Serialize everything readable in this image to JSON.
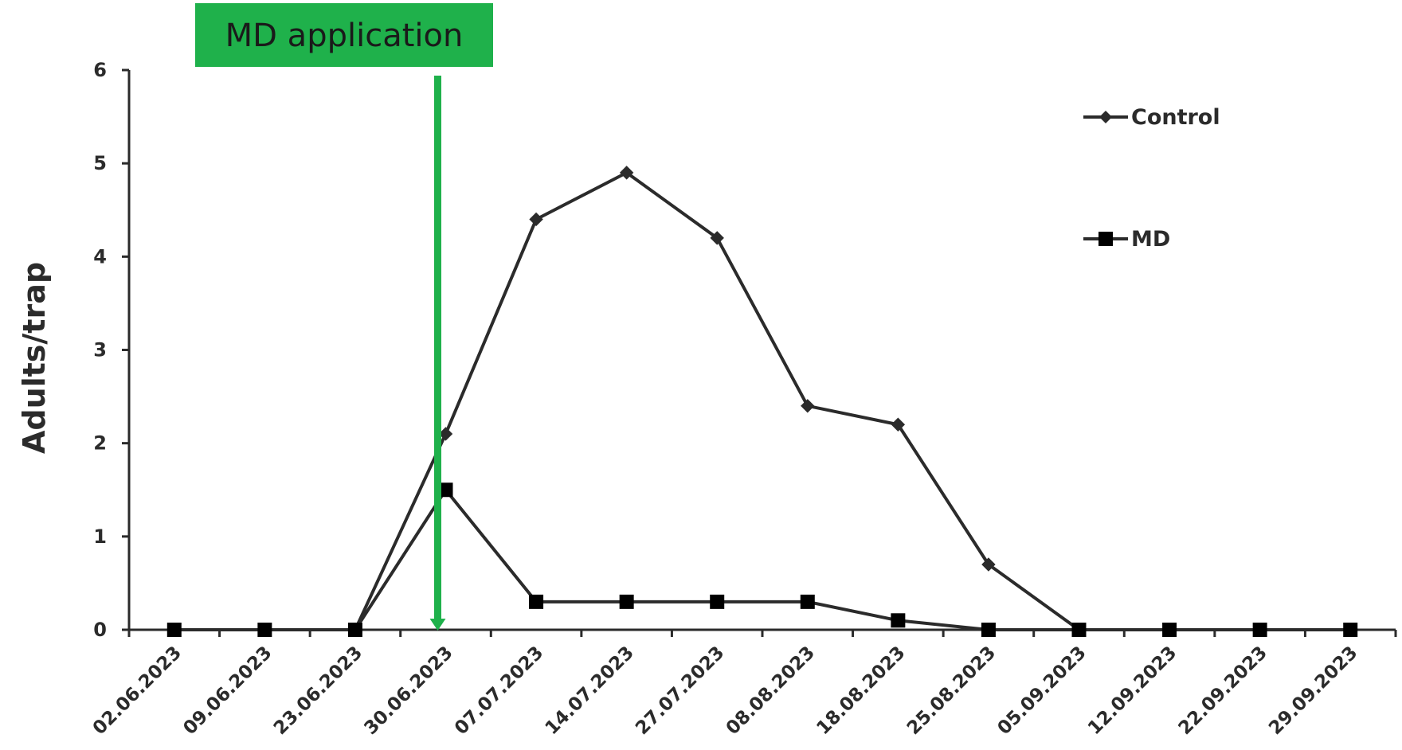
{
  "chart_data": {
    "type": "line",
    "xlabel": "",
    "ylabel": "Adults/trap",
    "ylim": [
      0,
      6
    ],
    "yticks": [
      0,
      1,
      2,
      3,
      4,
      5,
      6
    ],
    "categories": [
      "02.06.2023",
      "09.06.2023",
      "23.06.2023",
      "30.06.2023",
      "07.07.2023",
      "14.07.2023",
      "27.07.2023",
      "08.08.2023",
      "18.08.2023",
      "25.08.2023",
      "05.09.2023",
      "12.09.2023",
      "22.09.2023",
      "29.09.2023"
    ],
    "series": [
      {
        "name": "Control",
        "marker": "diamond",
        "color": "#2b2b2b",
        "values": [
          0,
          0,
          0,
          2.1,
          4.4,
          4.9,
          4.2,
          2.4,
          2.2,
          0.7,
          0,
          0,
          0,
          0
        ]
      },
      {
        "name": "MD",
        "marker": "square",
        "color": "#2b2b2b",
        "values": [
          0,
          0,
          0,
          1.5,
          0.3,
          0.3,
          0.3,
          0.3,
          0.1,
          0,
          0,
          0,
          0,
          0
        ]
      }
    ],
    "legend_position": "top-right",
    "grid": false,
    "annotation": {
      "text": "MD application",
      "at_category": "30.06.2023",
      "color": "#1fb14b"
    }
  }
}
